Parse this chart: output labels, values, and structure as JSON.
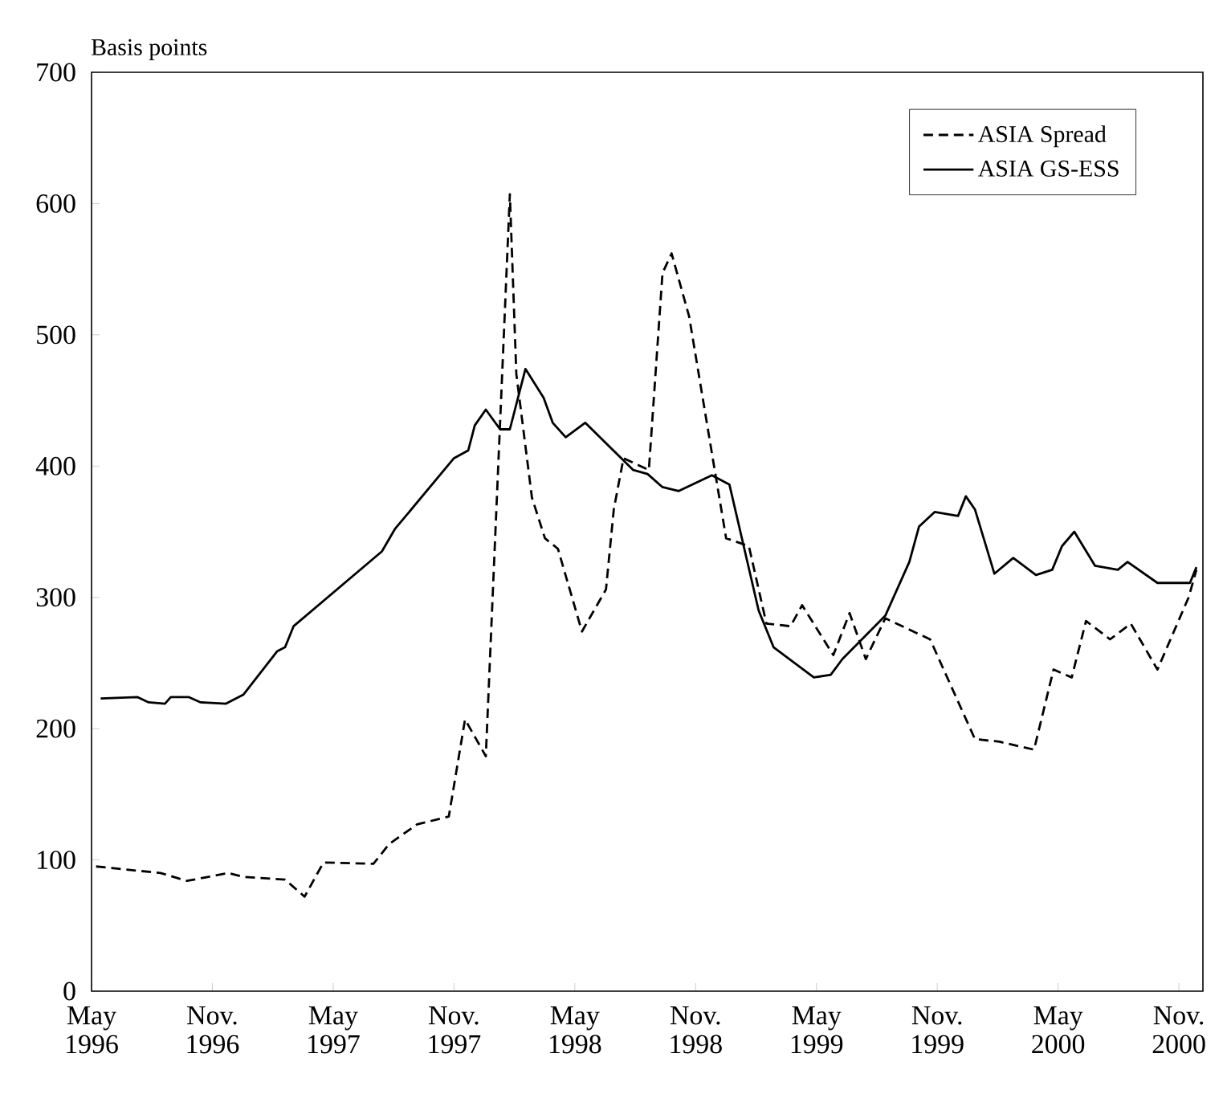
{
  "chart_data": {
    "type": "line",
    "ylabel": "Basis points",
    "xlim": [
      "1996-05-01",
      "2000-12-07"
    ],
    "ylim": [
      0,
      700
    ],
    "xticks": [
      {
        "value": "1996-05-01",
        "label": "May 1996"
      },
      {
        "value": "1996-11-01",
        "label": "Nov. 1996"
      },
      {
        "value": "1997-05-01",
        "label": "May 1997"
      },
      {
        "value": "1997-11-01",
        "label": "Nov. 1997"
      },
      {
        "value": "1998-05-01",
        "label": "May 1998"
      },
      {
        "value": "1998-11-01",
        "label": "Nov. 1998"
      },
      {
        "value": "1999-05-01",
        "label": "May 1999"
      },
      {
        "value": "1999-11-01",
        "label": "Nov. 1999"
      },
      {
        "value": "2000-05-01",
        "label": "May 2000"
      },
      {
        "value": "2000-11-01",
        "label": "Nov. 2000"
      }
    ],
    "yticks": [
      0,
      100,
      200,
      300,
      400,
      500,
      600,
      700
    ],
    "grid": false,
    "legend": "top right",
    "marker": "none",
    "series": [
      {
        "name": "ASIA Spread",
        "color": "#000000",
        "line_style": "dashed",
        "x": [
          "1996-05-08",
          "1996-08-14",
          "1996-09-24",
          "1996-11-26",
          "1996-12-18",
          "1997-02-20",
          "1997-03-19",
          "1997-04-17",
          "1997-07-01",
          "1997-07-25",
          "1997-09-06",
          "1997-10-24",
          "1997-11-18",
          "1997-12-19",
          "1998-01-25",
          "1998-02-04",
          "1998-02-28",
          "1998-03-17",
          "1998-04-06",
          "1998-05-12",
          "1998-06-18",
          "1998-06-30",
          "1998-07-14",
          "1998-08-22",
          "1998-09-12",
          "1998-09-26",
          "1998-10-22",
          "1998-11-28",
          "1998-12-17",
          "1999-01-21",
          "1999-02-17",
          "1999-03-23",
          "1999-04-10",
          "1999-05-27",
          "1999-06-21",
          "1999-07-15",
          "1999-08-14",
          "1999-10-21",
          "1999-12-28",
          "2000-02-04",
          "2000-03-26",
          "2000-04-25",
          "2000-05-22",
          "2000-06-13",
          "2000-07-19",
          "2000-08-20",
          "2000-09-30",
          "2000-11-16",
          "2000-11-28"
        ],
        "values": [
          95,
          90,
          84,
          90,
          87,
          85,
          72,
          98,
          97,
          112,
          127,
          133,
          207,
          179,
          607,
          470,
          376,
          345,
          337,
          274,
          306,
          367,
          406,
          397,
          547,
          562,
          514,
          404,
          345,
          339,
          280,
          278,
          294,
          256,
          288,
          253,
          284,
          268,
          192,
          190,
          184,
          245,
          239,
          282,
          268,
          280,
          245,
          300,
          321
        ]
      },
      {
        "name": "ASIA GS-ESS",
        "color": "#000000",
        "line_style": "solid",
        "x": [
          "1996-05-15",
          "1996-07-10",
          "1996-07-27",
          "1996-08-21",
          "1996-08-30",
          "1996-09-27",
          "1996-10-14",
          "1996-11-22",
          "1996-12-18",
          "1997-02-08",
          "1997-02-20",
          "1997-03-02",
          "1997-07-14",
          "1997-08-03",
          "1997-11-01",
          "1997-11-23",
          "1997-12-02",
          "1997-12-19",
          "1998-01-10",
          "1998-01-25",
          "1998-02-18",
          "1998-03-15",
          "1998-03-29",
          "1998-04-18",
          "1998-05-17",
          "1998-07-29",
          "1998-08-20",
          "1998-09-12",
          "1998-10-06",
          "1998-11-26",
          "1998-12-22",
          "1999-02-05",
          "1999-02-28",
          "1999-04-28",
          "1999-05-23",
          "1999-06-10",
          "1999-08-14",
          "1999-09-20",
          "1999-10-04",
          "1999-10-28",
          "1999-12-02",
          "1999-12-14",
          "1999-12-28",
          "2000-01-27",
          "2000-02-25",
          "2000-03-29",
          "2000-04-23",
          "2000-05-07",
          "2000-05-26",
          "2000-06-27",
          "2000-07-31",
          "2000-08-15",
          "2000-09-30",
          "2000-11-18",
          "2000-11-28"
        ],
        "values": [
          223,
          224,
          220,
          219,
          224,
          224,
          220,
          219,
          226,
          259,
          262,
          278,
          335,
          352,
          406,
          412,
          431,
          443,
          428,
          428,
          474,
          452,
          433,
          422,
          433,
          397,
          394,
          384,
          381,
          393,
          386,
          290,
          262,
          239,
          241,
          253,
          286,
          327,
          354,
          365,
          362,
          377,
          367,
          318,
          330,
          317,
          321,
          339,
          350,
          324,
          321,
          327,
          311,
          311,
          323
        ]
      }
    ]
  }
}
